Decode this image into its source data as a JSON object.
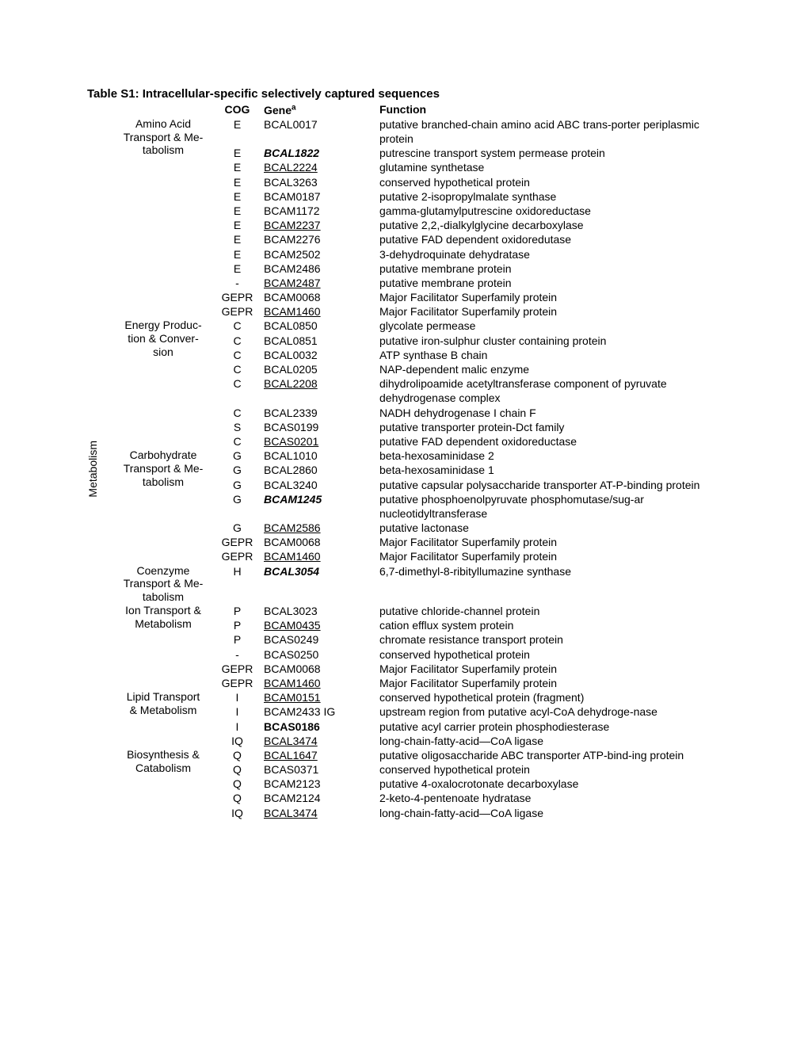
{
  "title": "Table S1:  Intracellular-specific selectively captured sequences",
  "headers": {
    "cog": "COG",
    "gene": "Gene",
    "gene_sup": "a",
    "func": "Function"
  },
  "vertical": "Metabolism",
  "rows": [
    {
      "cat": "Amino Acid Transport & Me-tabolism",
      "cat_lines": [
        "Amino Acid",
        "Transport & Me-",
        "tabolism"
      ],
      "cat_row_span": 14,
      "cog": "E",
      "gene": "BCAL0017",
      "gstyle": "",
      "func": "putative branched-chain amino acid ABC trans-porter periplasmic protein",
      "lines": 2
    },
    {
      "cog": "E",
      "gene": "BCAL1822",
      "gstyle": "bolditalic",
      "func": "putrescine transport system permease protein",
      "lines": 1
    },
    {
      "cog": "E",
      "gene": "BCAL2224",
      "gstyle": "underline",
      "func": "glutamine synthetase",
      "lines": 1
    },
    {
      "cog": "E",
      "gene": "BCAL3263",
      "gstyle": "",
      "func": "conserved hypothetical protein",
      "lines": 1
    },
    {
      "cog": "E",
      "gene": "BCAM0187",
      "gstyle": "",
      "func": "putative 2-isopropylmalate synthase",
      "lines": 1
    },
    {
      "cog": "E",
      "gene": "BCAM1172",
      "gstyle": "",
      "func": "gamma-glutamylputrescine oxidoreductase",
      "lines": 1
    },
    {
      "cog": "E",
      "gene": "BCAM2237",
      "gstyle": "underline",
      "func": "putative 2,2,-dialkylglycine decarboxylase",
      "lines": 1
    },
    {
      "cog": "E",
      "gene": "BCAM2276",
      "gstyle": "",
      "func": "putative FAD dependent oxidoredutase",
      "lines": 1
    },
    {
      "cog": "E",
      "gene": "BCAM2502",
      "gstyle": "",
      "func": "3-dehydroquinate dehydratase",
      "lines": 1
    },
    {
      "cog": "E",
      "gene": "BCAM2486",
      "gstyle": "",
      "func": "putative membrane protein",
      "lines": 1
    },
    {
      "cog": "-",
      "gene": "BCAM2487",
      "gstyle": "underline",
      "func": "putative membrane protein",
      "lines": 1
    },
    {
      "cog": "GEPR",
      "gene": "BCAM0068",
      "gstyle": "",
      "func": "Major Facilitator Superfamily protein",
      "lines": 1
    },
    {
      "cog": "GEPR",
      "gene": "BCAM1460",
      "gstyle": "underline",
      "func": "Major Facilitator Superfamily protein",
      "lines": 1
    },
    {
      "cat": "Energy Produc-tion & Conver-sion",
      "cat_lines": [
        "Energy Produc-",
        "tion & Conver-",
        "sion"
      ],
      "cat_row_span": 8,
      "cog": "C",
      "gene": "BCAL0850",
      "gstyle": "",
      "func": "glycolate permease",
      "lines": 1
    },
    {
      "cog": "C",
      "gene": "BCAL0851",
      "gstyle": "",
      "func": "putative iron-sulphur cluster containing protein",
      "lines": 1
    },
    {
      "cog": "C",
      "gene": "BCAL0032",
      "gstyle": "",
      "func": "ATP synthase B chain",
      "lines": 1
    },
    {
      "cog": "C",
      "gene": "BCAL0205",
      "gstyle": "",
      "func": "NAP-dependent malic enzyme",
      "lines": 1
    },
    {
      "cog": "C",
      "gene": "BCAL2208",
      "gstyle": "underline",
      "func": "dihydrolipoamide acetyltransferase component of pyruvate dehydrogenase complex",
      "lines": 2
    },
    {
      "cog": "C",
      "gene": "BCAL2339",
      "gstyle": "",
      "func": "NADH dehydrogenase I chain F",
      "lines": 1
    },
    {
      "cog": "S",
      "gene": "BCAS0199",
      "gstyle": "",
      "func": "putative transporter protein-Dct family",
      "lines": 1
    },
    {
      "cog": "C",
      "gene": "BCAS0201",
      "gstyle": "underline",
      "func": "putative FAD dependent oxidoreductase",
      "lines": 1
    },
    {
      "cat": "Carbohydrate Transport & Me-tabolism",
      "cat_lines": [
        "Carbohydrate",
        "Transport & Me-",
        "tabolism"
      ],
      "cat_row_span": 7,
      "cog": "G",
      "gene": "BCAL1010",
      "gstyle": "",
      "func": "beta-hexosaminidase 2",
      "lines": 1
    },
    {
      "cog": "G",
      "gene": "BCAL2860",
      "gstyle": "",
      "func": "beta-hexosaminidase 1",
      "lines": 1
    },
    {
      "cog": "G",
      "gene": "BCAL3240",
      "gstyle": "",
      "func": "putative capsular polysaccharide transporter AT-P-binding protein",
      "lines": 2
    },
    {
      "cog": "G",
      "gene": "BCAM1245",
      "gstyle": "bolditalic",
      "func": "putative phosphoenolpyruvate phosphomutase/sug-ar nucleotidyltransferase",
      "lines": 2
    },
    {
      "cog": "G",
      "gene": "BCAM2586",
      "gstyle": "underline",
      "func": "putative lactonase",
      "lines": 1
    },
    {
      "cog": "GEPR",
      "gene": "BCAM0068",
      "gstyle": "",
      "func": "Major Facilitator Superfamily protein",
      "lines": 1
    },
    {
      "cog": "GEPR",
      "gene": "BCAM1460",
      "gstyle": "underline",
      "func": "Major Facilitator Superfamily protein",
      "lines": 1
    },
    {
      "cat": "Coenzyme Transport & Me-tabolism",
      "cat_lines": [
        "Coenzyme",
        "Transport & Me-",
        "tabolism"
      ],
      "cat_row_span": 1,
      "cog": "H",
      "gene": "BCAL3054",
      "gstyle": "bolditalic",
      "func": "6,7-dimethyl-8-ribityllumazine synthase",
      "lines": 3
    },
    {
      "cat": "Ion Transport & Metabolism",
      "cat_lines": [
        "Ion Transport &",
        "Metabolism"
      ],
      "cat_row_span": 6,
      "cog": "P",
      "gene": "BCAL3023",
      "gstyle": "",
      "func": "putative chloride-channel protein",
      "lines": 1
    },
    {
      "cog": "P",
      "gene": "BCAM0435",
      "gstyle": "underline",
      "func": "cation efflux system protein",
      "lines": 1
    },
    {
      "cog": "P",
      "gene": "BCAS0249",
      "gstyle": "",
      "func": "chromate resistance transport protein",
      "lines": 1
    },
    {
      "cog": "-",
      "gene": "BCAS0250",
      "gstyle": "",
      "func": "conserved hypothetical protein",
      "lines": 1
    },
    {
      "cog": "GEPR",
      "gene": "BCAM0068",
      "gstyle": "",
      "func": "Major Facilitator Superfamily protein",
      "lines": 1
    },
    {
      "cog": "GEPR",
      "gene": "BCAM1460",
      "gstyle": "underline",
      "func": "Major Facilitator Superfamily protein",
      "lines": 1
    },
    {
      "cat": "Lipid Transport & Metabolism",
      "cat_lines": [
        "Lipid Transport",
        "& Metabolism"
      ],
      "cat_row_span": 4,
      "cog": "I",
      "gene": "BCAM0151",
      "gstyle": "underline",
      "func": "conserved hypothetical protein (fragment)",
      "lines": 1
    },
    {
      "cog": "I",
      "gene": "BCAM2433 IG",
      "gstyle": "",
      "func": "upstream region from putative acyl-CoA dehydroge-nase",
      "lines": 2
    },
    {
      "cog": "I",
      "gene": "BCAS0186",
      "gstyle": "bold",
      "func": "putative acyl carrier protein phosphodiesterase",
      "lines": 1
    },
    {
      "cog": "IQ",
      "gene": "BCAL3474",
      "gstyle": "underline",
      "func": "long-chain-fatty-acid—CoA ligase",
      "lines": 1
    },
    {
      "cat": "Biosynthesis & Catabolism",
      "cat_lines": [
        "Biosynthesis &",
        "Catabolism"
      ],
      "cat_row_span": 5,
      "cog": "Q",
      "gene": "BCAL1647",
      "gstyle": "underline",
      "func": "putative oligosaccharide ABC transporter ATP-bind-ing protein",
      "lines": 2
    },
    {
      "cog": "Q",
      "gene": "BCAS0371",
      "gstyle": "",
      "func": "conserved hypothetical protein",
      "lines": 1
    },
    {
      "cog": "Q",
      "gene": "BCAM2123",
      "gstyle": "",
      "func": "putative 4-oxalocrotonate decarboxylase",
      "lines": 1
    },
    {
      "cog": "Q",
      "gene": "BCAM2124",
      "gstyle": "",
      "func": "2-keto-4-pentenoate hydratase",
      "lines": 1
    },
    {
      "cog": "IQ",
      "gene": "BCAL3474",
      "gstyle": "underline",
      "func": "long-chain-fatty-acid—CoA ligase",
      "lines": 1
    }
  ]
}
